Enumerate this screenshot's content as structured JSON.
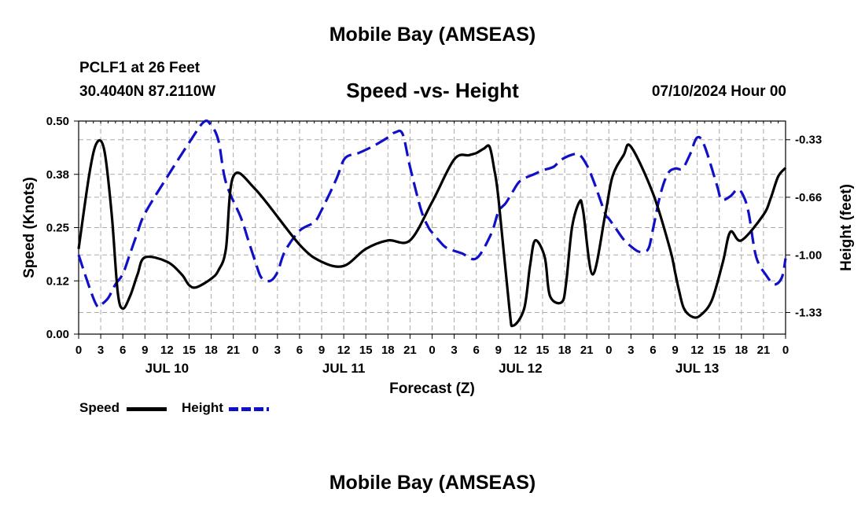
{
  "header": {
    "title": "Mobile Bay (AMSEAS)",
    "station": "PCLF1 at 26 Feet",
    "coords": "30.4040N  87.2110W",
    "subtitle": "Speed -vs- Height",
    "date": "07/10/2024 Hour 00",
    "footer_title": "Mobile Bay (AMSEAS)"
  },
  "legend": {
    "items": [
      {
        "label": "Speed",
        "color": "#000000",
        "style": "solid"
      },
      {
        "label": "Height",
        "color": "#1010c8",
        "style": "dashed"
      }
    ]
  },
  "chart_data": {
    "type": "line",
    "title": "Speed -vs- Height",
    "xlabel": "Forecast (Z)",
    "ylabel": "Speed (Knots)",
    "y2label": "Height (feet)",
    "xlim": [
      0,
      96
    ],
    "ylim": [
      0,
      0.5
    ],
    "y2lim": [
      -1.4583,
      -0.225
    ],
    "grid": true,
    "legend_position": "bottom-left",
    "x_tick_labels": [
      "0",
      "3",
      "6",
      "9",
      "12",
      "15",
      "18",
      "21",
      "0",
      "3",
      "6",
      "9",
      "12",
      "15",
      "18",
      "21",
      "0",
      "3",
      "6",
      "9",
      "12",
      "15",
      "18",
      "21",
      "0",
      "3",
      "6",
      "9",
      "12",
      "15",
      "18",
      "21",
      "0"
    ],
    "x_day_labels": [
      {
        "label": "JUL 10",
        "x": 12
      },
      {
        "label": "JUL 11",
        "x": 36
      },
      {
        "label": "JUL 12",
        "x": 60
      },
      {
        "label": "JUL 13",
        "x": 84
      }
    ],
    "y_tick_labels": [
      "0.00",
      "0.12",
      "0.25",
      "0.38",
      "0.50"
    ],
    "y_ticks": [
      0,
      0.125,
      0.25,
      0.375,
      0.5
    ],
    "y2_tick_labels": [
      "-1.33",
      "-1.00",
      "-0.66",
      "-0.33"
    ],
    "y2_ticks": [
      -1.333,
      -1.0,
      -0.666,
      -0.333
    ],
    "series": [
      {
        "name": "Speed",
        "axis": "left",
        "x": [
          0,
          1.5,
          2.5,
          3.5,
          4.5,
          5.3,
          6,
          7,
          8,
          9,
          12,
          14,
          15,
          16,
          18,
          19,
          20,
          21,
          24,
          30,
          33,
          36,
          39,
          42,
          45,
          48,
          51,
          53,
          54,
          55,
          55.8,
          56.4,
          57,
          58.5,
          59,
          60.5,
          61.3,
          62,
          63.3,
          64,
          65.6,
          66.2,
          67,
          68,
          68.5,
          69.8,
          71.5,
          72.5,
          74,
          75,
          78,
          80.3,
          81,
          81.5,
          82.2,
          83.4,
          84.5,
          86,
          87.5,
          88.5,
          90,
          93,
          94,
          95,
          96
        ],
        "values": [
          0.2,
          0.38,
          0.45,
          0.43,
          0.28,
          0.1,
          0.06,
          0.09,
          0.14,
          0.18,
          0.17,
          0.14,
          0.115,
          0.11,
          0.13,
          0.15,
          0.2,
          0.37,
          0.34,
          0.21,
          0.17,
          0.16,
          0.2,
          0.22,
          0.22,
          0.31,
          0.41,
          0.42,
          0.425,
          0.435,
          0.44,
          0.39,
          0.32,
          0.06,
          0.02,
          0.06,
          0.16,
          0.22,
          0.18,
          0.09,
          0.075,
          0.12,
          0.25,
          0.31,
          0.29,
          0.14,
          0.28,
          0.37,
          0.42,
          0.44,
          0.33,
          0.2,
          0.145,
          0.105,
          0.06,
          0.04,
          0.045,
          0.08,
          0.17,
          0.24,
          0.22,
          0.28,
          0.32,
          0.37,
          0.39
        ]
      },
      {
        "name": "Height",
        "axis": "right",
        "x": [
          0,
          1,
          2,
          2.6,
          3,
          4,
          5,
          6,
          7,
          8,
          9,
          12,
          15,
          17,
          18,
          19,
          20,
          22,
          23,
          24,
          24.8,
          26,
          27,
          28,
          30,
          32,
          33,
          35,
          36,
          37,
          38,
          40,
          42,
          43,
          44,
          45,
          46.5,
          47.5,
          48,
          49,
          50,
          52,
          54,
          56,
          57,
          58,
          59,
          60,
          62,
          63,
          64.5,
          65.5,
          67,
          68,
          69,
          70,
          71.5,
          72,
          73,
          74,
          75,
          76,
          77,
          77.5,
          78,
          79,
          80,
          81,
          82,
          83,
          84,
          85,
          86.7,
          87.3,
          88.5,
          89.5,
          90.3,
          91,
          92,
          93.4,
          94.5,
          95.5,
          96
        ],
        "values": [
          -1.0,
          -1.13,
          -1.25,
          -1.3,
          -1.29,
          -1.25,
          -1.17,
          -1.11,
          -0.99,
          -0.87,
          -0.76,
          -0.55,
          -0.35,
          -0.23,
          -0.25,
          -0.34,
          -0.58,
          -0.78,
          -0.91,
          -1.04,
          -1.13,
          -1.15,
          -1.1,
          -0.98,
          -0.86,
          -0.81,
          -0.74,
          -0.56,
          -0.45,
          -0.42,
          -0.41,
          -0.37,
          -0.32,
          -0.29,
          -0.3,
          -0.49,
          -0.74,
          -0.84,
          -0.87,
          -0.92,
          -0.96,
          -0.99,
          -1.02,
          -0.88,
          -0.75,
          -0.7,
          -0.63,
          -0.57,
          -0.53,
          -0.51,
          -0.49,
          -0.45,
          -0.42,
          -0.42,
          -0.48,
          -0.58,
          -0.76,
          -0.79,
          -0.85,
          -0.91,
          -0.95,
          -0.98,
          -0.98,
          -0.95,
          -0.85,
          -0.65,
          -0.53,
          -0.5,
          -0.5,
          -0.42,
          -0.32,
          -0.37,
          -0.6,
          -0.68,
          -0.66,
          -0.62,
          -0.66,
          -0.76,
          -1.01,
          -1.12,
          -1.17,
          -1.13,
          -1.02
        ]
      }
    ]
  }
}
